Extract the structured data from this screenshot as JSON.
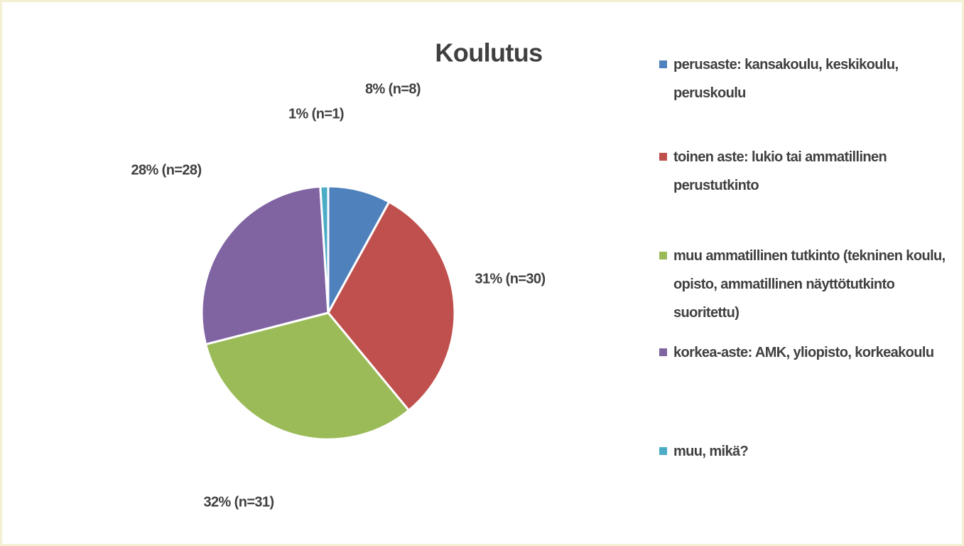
{
  "chart_data": {
    "type": "pie",
    "title": "Koulutus",
    "categories": [
      "perusaste: kansakoulu, keskikoulu, peruskoulu",
      "toinen aste: lukio tai ammatillinen perustutkinto",
      "muu ammatillinen tutkinto (tekninen koulu, opisto, ammatillinen näyttötutkinto suoritettu)",
      "korkea-aste: AMK, yliopisto, korkeakoulu",
      "muu, mikä?"
    ],
    "values": [
      8,
      31,
      32,
      28,
      1
    ],
    "value_labels": [
      "8% (n=8)",
      "31% (n=30)",
      "32% (n=31)",
      "28% (n=28)",
      "1% (n=1)"
    ],
    "colors": [
      "#4f81bd",
      "#c0504d",
      "#9bbb59",
      "#8064a2",
      "#4bacc6"
    ],
    "legend": "right"
  }
}
